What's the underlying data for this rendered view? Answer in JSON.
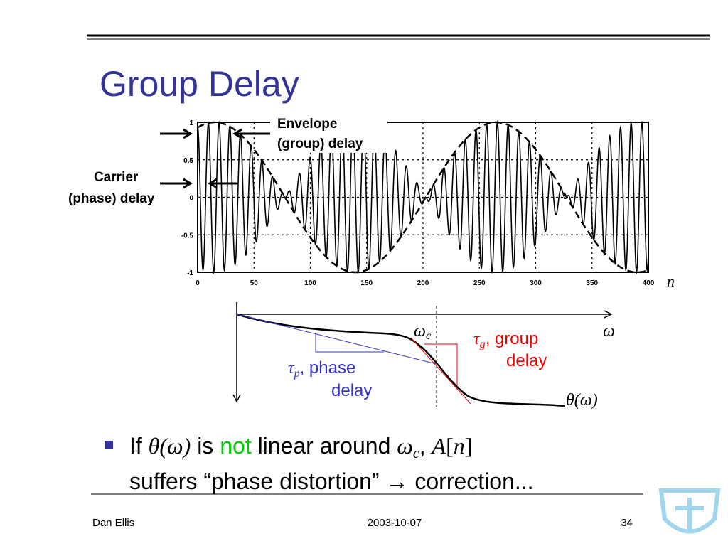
{
  "title": "Group Delay",
  "figure": {
    "yticks": [
      1,
      0.5,
      0,
      -0.5,
      -1
    ],
    "xticks": [
      0,
      50,
      100,
      150,
      200,
      250,
      300,
      350,
      400
    ],
    "x_label": "n",
    "envelope_label": [
      "Envelope",
      "(group) delay"
    ],
    "carrier_label": [
      "Carrier",
      "(phase) delay"
    ]
  },
  "diagram": {
    "x_axis": "ω",
    "cutoff": {
      "symbol": "ω",
      "sub": "c"
    },
    "group": {
      "symbol": "τ",
      "sub": "g",
      "text": ", group",
      "text2": "delay"
    },
    "phase": {
      "symbol": "τ",
      "sub": "p",
      "text": ", phase",
      "text2": "delay"
    },
    "curve": "θ(ω)"
  },
  "bullet": {
    "line1": [
      "If ",
      "θ(ω)",
      " is ",
      "not",
      " linear around ",
      "ω",
      "c",
      ", ",
      "A",
      "[",
      "n",
      "]"
    ],
    "line2": "suffers “phase distortion” → correction..."
  },
  "footer": {
    "author": "Dan Ellis",
    "date": "2003-10-07",
    "page": "34"
  }
}
